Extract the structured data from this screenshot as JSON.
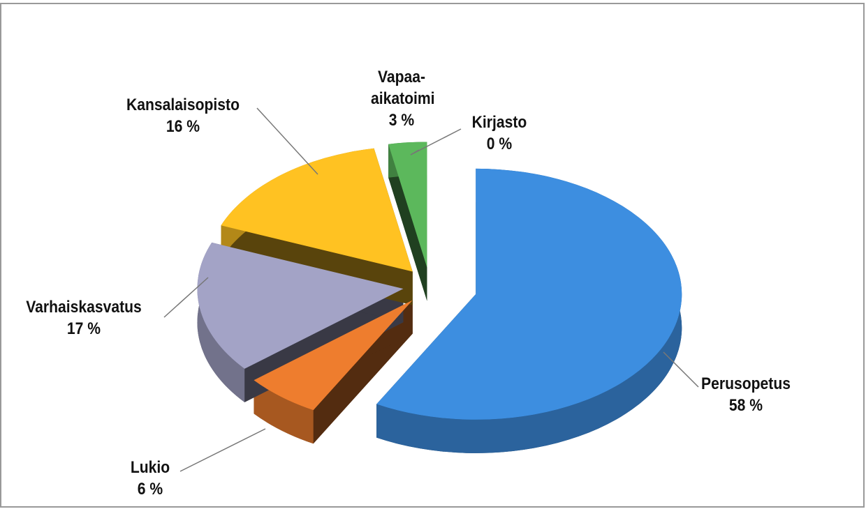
{
  "chart_data": {
    "type": "pie3d",
    "categories": [
      "Perusopetus",
      "Lukio",
      "Varhaiskasvatus",
      "Kansalaisopisto",
      "Vapaa-aikatoimi",
      "Kirjasto"
    ],
    "values": [
      58,
      6,
      17,
      16,
      3,
      0
    ],
    "value_labels": [
      "58 %",
      "6 %",
      "17 %",
      "16 %",
      "3 %",
      "0 %"
    ],
    "colors": [
      "#3d8ee0",
      "#ee7d2e",
      "#a3a3c6",
      "#ffc222",
      "#5cb85c",
      "#1f5c99"
    ]
  }
}
